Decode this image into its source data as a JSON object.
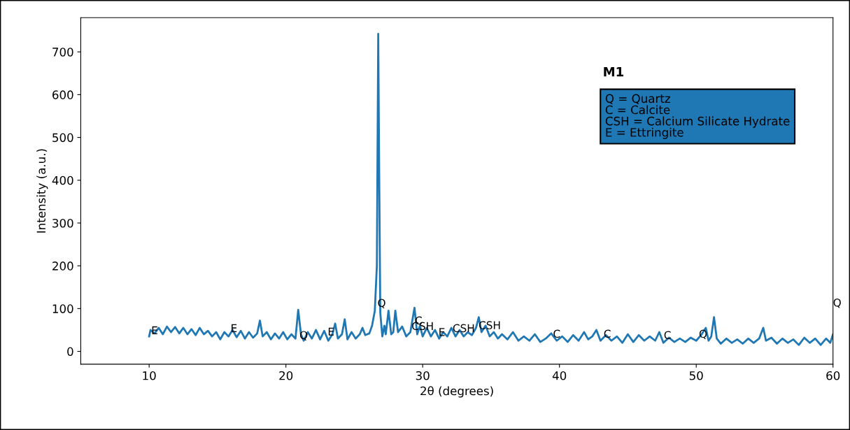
{
  "chart_data": {
    "type": "line",
    "xlabel": "2θ (degrees)",
    "ylabel": "Intensity (a.u.)",
    "xlim": [
      5,
      60
    ],
    "xticks": [
      10,
      20,
      30,
      40,
      50,
      60
    ],
    "ylim": [
      -30,
      780
    ],
    "yticks": [
      0,
      100,
      200,
      300,
      400,
      500,
      600,
      700
    ],
    "grid": false,
    "series": [
      {
        "color": "#1f77b4",
        "x": [
          10.0,
          10.1,
          10.4,
          10.7,
          11.0,
          11.3,
          11.6,
          11.9,
          12.2,
          12.5,
          12.8,
          13.1,
          13.4,
          13.7,
          14.0,
          14.3,
          14.6,
          14.9,
          15.2,
          15.5,
          15.8,
          16.1,
          16.4,
          16.7,
          17.0,
          17.3,
          17.6,
          17.9,
          18.1,
          18.3,
          18.6,
          18.9,
          19.2,
          19.5,
          19.8,
          20.1,
          20.4,
          20.7,
          20.9,
          21.1,
          21.3,
          21.6,
          21.9,
          22.2,
          22.5,
          22.8,
          23.1,
          23.4,
          23.6,
          23.8,
          24.1,
          24.3,
          24.5,
          24.8,
          25.1,
          25.4,
          25.6,
          25.8,
          26.1,
          26.3,
          26.5,
          26.65,
          26.75,
          26.82,
          26.9,
          27.05,
          27.2,
          27.3,
          27.5,
          27.7,
          27.85,
          28.0,
          28.2,
          28.5,
          28.8,
          29.1,
          29.4,
          29.6,
          29.8,
          30.0,
          30.3,
          30.6,
          30.9,
          31.2,
          31.5,
          31.8,
          32.1,
          32.4,
          32.7,
          33.0,
          33.3,
          33.6,
          33.9,
          34.1,
          34.3,
          34.6,
          34.9,
          35.2,
          35.5,
          35.8,
          36.2,
          36.6,
          37.0,
          37.4,
          37.8,
          38.2,
          38.6,
          39.0,
          39.4,
          39.8,
          40.2,
          40.6,
          41.0,
          41.4,
          41.8,
          42.1,
          42.4,
          42.7,
          43.0,
          43.4,
          43.8,
          44.2,
          44.6,
          45.0,
          45.4,
          45.8,
          46.2,
          46.6,
          47.0,
          47.3,
          47.6,
          48.0,
          48.4,
          48.8,
          49.2,
          49.6,
          50.0,
          50.4,
          50.7,
          50.9,
          51.1,
          51.3,
          51.5,
          51.8,
          52.2,
          52.6,
          53.0,
          53.4,
          53.8,
          54.2,
          54.6,
          54.9,
          55.1,
          55.5,
          55.9,
          56.3,
          56.7,
          57.1,
          57.5,
          57.9,
          58.3,
          58.7,
          59.1,
          59.5,
          59.8,
          60.0
        ],
        "values": [
          35,
          50,
          42,
          55,
          40,
          58,
          45,
          57,
          42,
          55,
          40,
          52,
          38,
          55,
          40,
          48,
          35,
          45,
          28,
          45,
          35,
          50,
          33,
          48,
          30,
          45,
          32,
          42,
          72,
          35,
          45,
          28,
          42,
          30,
          45,
          28,
          40,
          30,
          97,
          40,
          25,
          45,
          30,
          50,
          28,
          48,
          25,
          40,
          65,
          30,
          40,
          75,
          28,
          45,
          30,
          40,
          55,
          38,
          42,
          60,
          95,
          200,
          742,
          420,
          90,
          35,
          60,
          40,
          95,
          40,
          45,
          95,
          45,
          58,
          35,
          45,
          102,
          40,
          60,
          35,
          55,
          35,
          50,
          30,
          45,
          35,
          55,
          35,
          50,
          35,
          45,
          38,
          55,
          80,
          45,
          60,
          35,
          45,
          30,
          40,
          28,
          45,
          25,
          35,
          25,
          40,
          22,
          30,
          42,
          25,
          35,
          22,
          38,
          25,
          45,
          28,
          35,
          50,
          25,
          38,
          25,
          35,
          20,
          40,
          22,
          38,
          25,
          35,
          25,
          45,
          20,
          32,
          22,
          30,
          22,
          32,
          25,
          40,
          55,
          25,
          35,
          80,
          30,
          18,
          30,
          20,
          28,
          18,
          30,
          20,
          30,
          55,
          25,
          32,
          18,
          30,
          20,
          28,
          15,
          32,
          20,
          30,
          15,
          30,
          20,
          40
        ]
      }
    ],
    "annotations": [
      "M1",
      "Q = Quartz\nC = Calcite\nCSH = Calcium Silicate Hydrate\nE = Ettringite",
      {
        "text": "E",
        "x": 10.4,
        "y": 47
      },
      {
        "text": "E",
        "x": 16.2,
        "y": 52
      },
      {
        "text": "Q",
        "x": 21.3,
        "y": 36
      },
      {
        "text": "E",
        "x": 23.3,
        "y": 44
      },
      {
        "text": "Q",
        "x": 27.0,
        "y": 111
      },
      {
        "text": "C",
        "x": 29.7,
        "y": 70
      },
      {
        "text": "CSH",
        "x": 30.0,
        "y": 57
      },
      {
        "text": "E",
        "x": 31.4,
        "y": 43
      },
      {
        "text": "CSH",
        "x": 33.0,
        "y": 52
      },
      {
        "text": "CSH",
        "x": 34.9,
        "y": 59
      },
      {
        "text": "C",
        "x": 39.8,
        "y": 39
      },
      {
        "text": "C",
        "x": 43.5,
        "y": 39
      },
      {
        "text": "C",
        "x": 47.9,
        "y": 36
      },
      {
        "text": "Q",
        "x": 50.5,
        "y": 39
      },
      "Q"
    ]
  }
}
